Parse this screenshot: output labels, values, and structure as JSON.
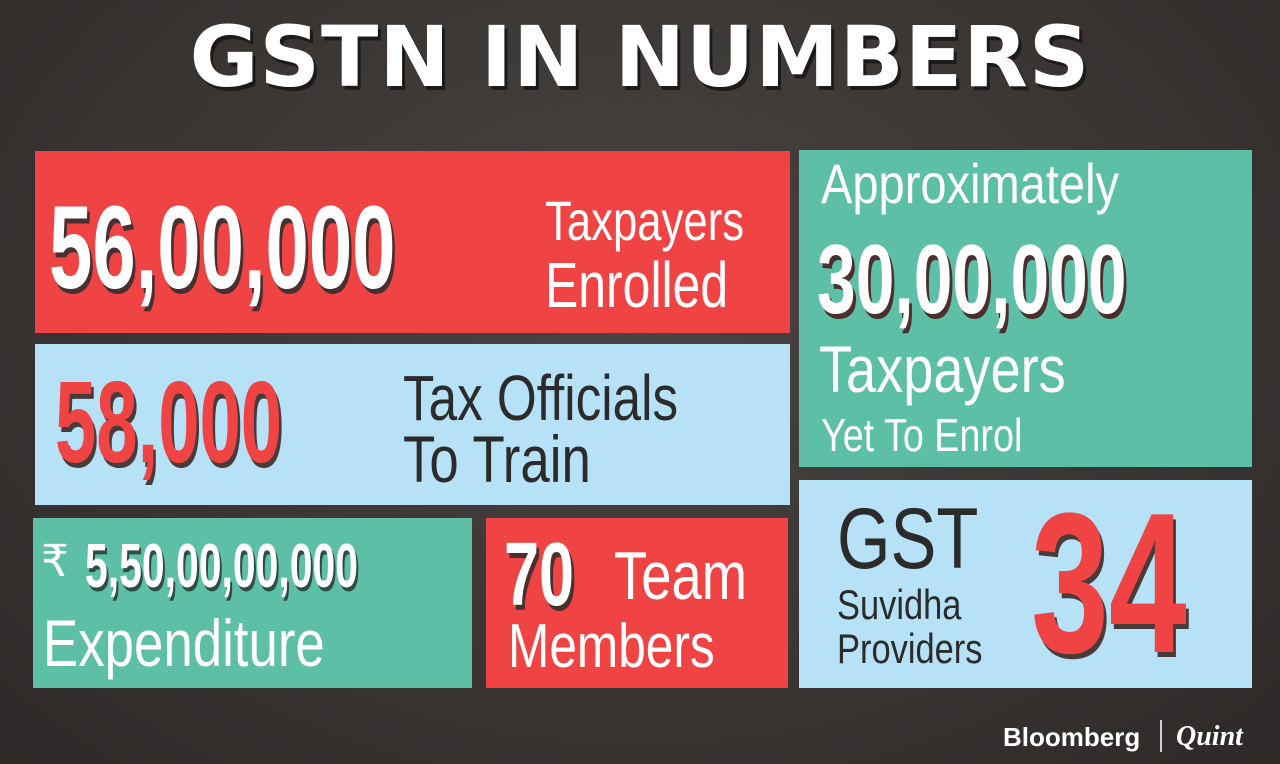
{
  "title": "GSTN IN NUMBERS",
  "colors": {
    "background": "#3b3534",
    "red": "#ef4443",
    "blue": "#b6e1f6",
    "teal": "#5ebfa7"
  },
  "taxpayers_enrolled": {
    "number": "56,00,000",
    "line1": "Taxpayers",
    "line2": "Enrolled"
  },
  "yet_to_enrol": {
    "line1": "Approximately",
    "number": "30,00,000",
    "line2": "Taxpayers",
    "line3": "Yet To Enrol"
  },
  "tax_officials": {
    "number": "58,000",
    "line1": "Tax Officials",
    "line2": "To Train"
  },
  "expenditure": {
    "currency": "₹",
    "amount": "5,50,00,00,000",
    "label": "Expenditure"
  },
  "team": {
    "number": "70",
    "line1": "Team",
    "line2": "Members"
  },
  "gsp": {
    "line1": "GST",
    "line2": "Suvidha",
    "line3": "Providers",
    "number": "34"
  },
  "branding": {
    "brand1": "Bloomberg",
    "brand2": "Quint"
  }
}
